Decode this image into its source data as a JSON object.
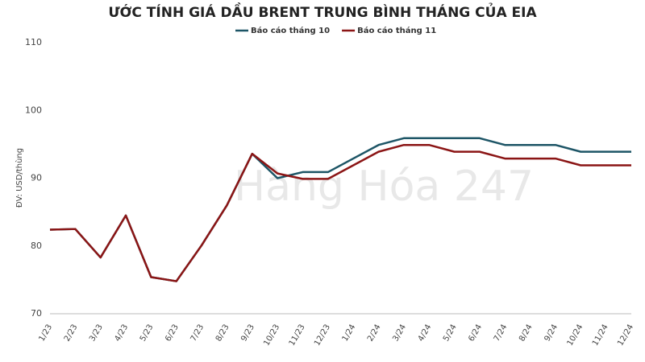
{
  "chart_data": {
    "type": "line",
    "title": "ƯỚC TÍNH GIÁ DẦU BRENT TRUNG BÌNH THÁNG CỦA EIA",
    "y_label": "ĐV: USD/thùng",
    "watermark": "Hàng Hóa 247",
    "categories": [
      "1/23",
      "2/23",
      "3/23",
      "4/23",
      "5/23",
      "6/23",
      "7/23",
      "8/23",
      "9/23",
      "10/23",
      "11/23",
      "12/23",
      "1/24",
      "2/24",
      "3/24",
      "4/24",
      "5/24",
      "6/24",
      "7/24",
      "8/24",
      "9/24",
      "10/24",
      "11/24",
      "12/24"
    ],
    "series": [
      {
        "name": "Báo cáo tháng 10",
        "color": "#1d5566",
        "values": [
          82.4,
          82.5,
          78.3,
          84.5,
          75.4,
          74.8,
          80.1,
          86,
          93.6,
          90,
          90.9,
          90.9,
          92.9,
          94.9,
          95.9,
          95.9,
          95.9,
          95.9,
          94.9,
          94.9,
          94.9,
          93.9,
          93.9,
          93.9
        ]
      },
      {
        "name": "Báo cáo tháng 11",
        "color": "#8b1515",
        "values": [
          82.4,
          82.5,
          78.3,
          84.5,
          75.4,
          74.8,
          80.1,
          86,
          93.6,
          90.7,
          89.9,
          89.9,
          91.9,
          93.9,
          94.9,
          94.9,
          93.9,
          93.9,
          92.9,
          92.9,
          92.9,
          91.9,
          91.9,
          91.9
        ]
      }
    ],
    "ylim": [
      70,
      110
    ],
    "yticks": [
      70,
      80,
      90,
      100,
      110
    ],
    "grid": false
  }
}
